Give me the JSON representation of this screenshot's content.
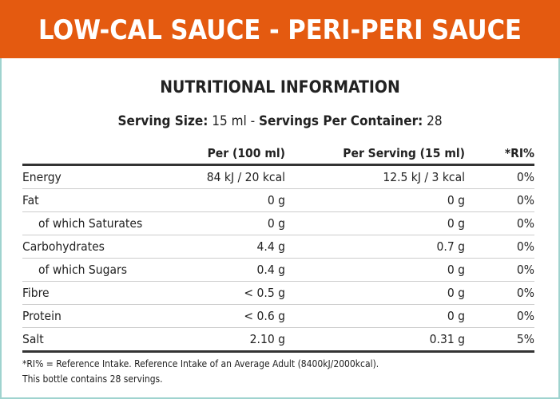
{
  "banner": {
    "title": "LOW-CAL SAUCE - PERI-PERI SAUCE",
    "color": "#e45a10"
  },
  "heading": "NUTRITIONAL INFORMATION",
  "serving": {
    "size_label": "Serving Size:",
    "size_value": "15 ml -",
    "per_container_label": "Servings Per Container:",
    "per_container_value": "28"
  },
  "table": {
    "headers": [
      "",
      "Per (100 ml)",
      "Per Serving (15 ml)",
      "*RI%"
    ],
    "rows": [
      {
        "name": "Energy",
        "per100": "84 kJ / 20 kcal",
        "serving": "12.5 kJ / 3 kcal",
        "ri": "0%",
        "indent": false
      },
      {
        "name": "Fat",
        "per100": "0 g",
        "serving": "0 g",
        "ri": "0%",
        "indent": false
      },
      {
        "name": "of which Saturates",
        "per100": "0 g",
        "serving": "0 g",
        "ri": "0%",
        "indent": true
      },
      {
        "name": "Carbohydrates",
        "per100": "4.4 g",
        "serving": "0.7 g",
        "ri": "0%",
        "indent": false
      },
      {
        "name": "of which Sugars",
        "per100": "0.4 g",
        "serving": "0 g",
        "ri": "0%",
        "indent": true
      },
      {
        "name": "Fibre",
        "per100": "< 0.5 g",
        "serving": "0 g",
        "ri": "0%",
        "indent": false
      },
      {
        "name": "Protein",
        "per100": "< 0.6 g",
        "serving": "0 g",
        "ri": "0%",
        "indent": false
      },
      {
        "name": "Salt",
        "per100": "2.10 g",
        "serving": "0.31 g",
        "ri": "5%",
        "indent": false
      }
    ]
  },
  "footnote": [
    "*RI% = Reference Intake. Reference Intake of an Average Adult (8400kJ/2000kcal).",
    "This bottle contains 28 servings."
  ]
}
